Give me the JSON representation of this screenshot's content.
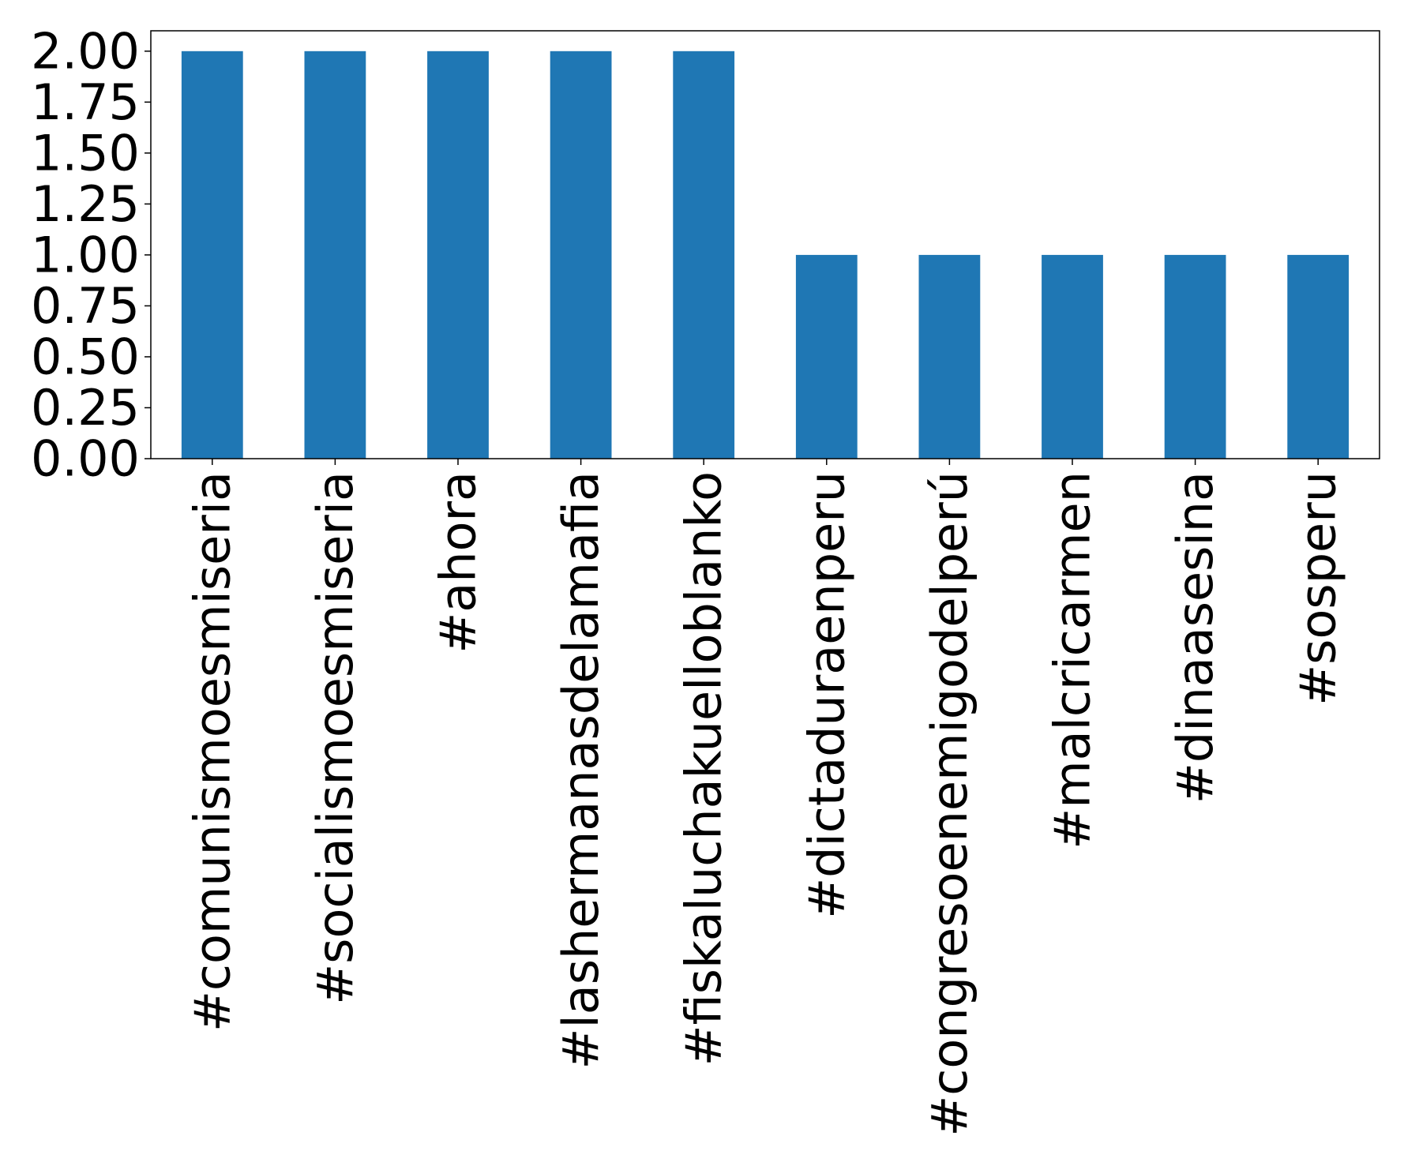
{
  "chart_data": {
    "type": "bar",
    "categories": [
      "#comunismoesmiseria",
      "#socialismoesmiseria",
      "#ahora",
      "#lashermanasdelamafia",
      "#fiskaluchakuelloblanko",
      "#dictaduraenperu",
      "#congresoenemigodelperú",
      "#malcricarmen",
      "#dinaasesina",
      "#sosperu"
    ],
    "values": [
      2,
      2,
      2,
      2,
      2,
      1,
      1,
      1,
      1,
      1
    ],
    "ylim": [
      0,
      2.1
    ],
    "yticks": [
      "0.00",
      "0.25",
      "0.50",
      "0.75",
      "1.00",
      "1.25",
      "1.50",
      "1.75",
      "2.00"
    ],
    "title": "",
    "xlabel": "",
    "ylabel": "",
    "grid": false,
    "bar_color": "#1f77b4"
  }
}
